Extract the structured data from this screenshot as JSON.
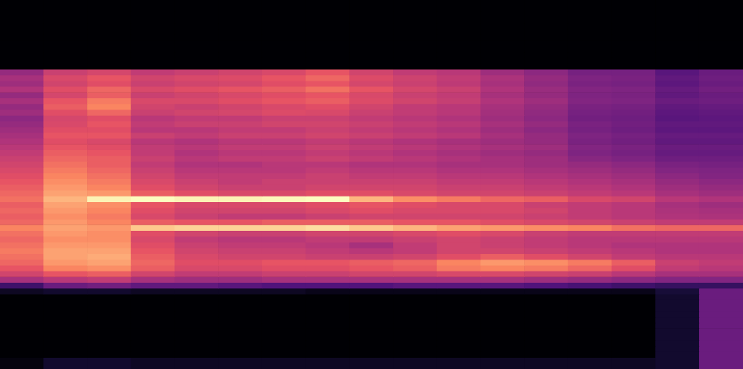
{
  "chart_data": {
    "type": "heatmap",
    "tick_labels": false,
    "ylim": [
      0,
      64
    ],
    "cells": [
      [
        0,
        0,
        0,
        0,
        0,
        0,
        0,
        0,
        0,
        0,
        0,
        0,
        0,
        0,
        0,
        0,
        0
      ],
      [
        0,
        0,
        0,
        0,
        0,
        0,
        0,
        0,
        0,
        0,
        0,
        0,
        0,
        0,
        0,
        0,
        0
      ],
      [
        0,
        0,
        0,
        0,
        0,
        0,
        0,
        0,
        0,
        0,
        0,
        0,
        0,
        0,
        0,
        0,
        0
      ],
      [
        0,
        0,
        0,
        0,
        0,
        0,
        0,
        0,
        0,
        0,
        0,
        0,
        0,
        0,
        0,
        0,
        0
      ],
      [
        0,
        0,
        0,
        0,
        0,
        0,
        0,
        0,
        0,
        0,
        0,
        0,
        0,
        0,
        0,
        0,
        0
      ],
      [
        0,
        0,
        0,
        0,
        0,
        0,
        0,
        0,
        0,
        0,
        0,
        0,
        0,
        0,
        0,
        0,
        0
      ],
      [
        0,
        0,
        0,
        0,
        0,
        0,
        0,
        0,
        0,
        0,
        0,
        0,
        0,
        0,
        0,
        0,
        0
      ],
      [
        0,
        0,
        0,
        0,
        0,
        0,
        0,
        0,
        0,
        0,
        0,
        0,
        0,
        0,
        0,
        0,
        0
      ],
      [
        0,
        0,
        0,
        0,
        0,
        0,
        0,
        0,
        0,
        0,
        0,
        0,
        0,
        0,
        0,
        0,
        0
      ],
      [
        0,
        0,
        0,
        0,
        0,
        0,
        0,
        0,
        0,
        0,
        0,
        0,
        0,
        0,
        0,
        0,
        0
      ],
      [
        0,
        0,
        0,
        0,
        0,
        0,
        0,
        0,
        0,
        0,
        0,
        0,
        0,
        0,
        0,
        0,
        0
      ],
      [
        0,
        0,
        0,
        0,
        0,
        0,
        0,
        0,
        0,
        0,
        0,
        0,
        0,
        0,
        0,
        0,
        0
      ],
      [
        40,
        52,
        55,
        50,
        52,
        54,
        56,
        60,
        54,
        50,
        48,
        42,
        38,
        33,
        33,
        26,
        30
      ],
      [
        44,
        56,
        60,
        54,
        56,
        57,
        60,
        64,
        57,
        53,
        50,
        45,
        40,
        35,
        34,
        28,
        31
      ],
      [
        42,
        54,
        58,
        52,
        54,
        55,
        58,
        60,
        55,
        52,
        49,
        44,
        39,
        34,
        33,
        27,
        30
      ],
      [
        46,
        58,
        64,
        56,
        58,
        60,
        62,
        66,
        60,
        55,
        52,
        46,
        41,
        36,
        35,
        29,
        32
      ],
      [
        40,
        55,
        62,
        52,
        54,
        56,
        58,
        60,
        56,
        52,
        50,
        44,
        40,
        35,
        34,
        28,
        30
      ],
      [
        44,
        60,
        68,
        56,
        56,
        58,
        60,
        62,
        57,
        54,
        51,
        46,
        42,
        36,
        35,
        30,
        31
      ],
      [
        40,
        62,
        70,
        54,
        52,
        54,
        56,
        58,
        54,
        50,
        48,
        44,
        40,
        34,
        33,
        28,
        29
      ],
      [
        42,
        58,
        64,
        52,
        54,
        55,
        57,
        56,
        52,
        50,
        48,
        43,
        39,
        33,
        32,
        27,
        28
      ],
      [
        38,
        55,
        58,
        48,
        50,
        50,
        52,
        52,
        50,
        48,
        46,
        42,
        38,
        32,
        31,
        26,
        27
      ],
      [
        40,
        56,
        60,
        50,
        52,
        52,
        54,
        54,
        52,
        50,
        48,
        44,
        40,
        34,
        32,
        28,
        28
      ],
      [
        42,
        58,
        58,
        48,
        48,
        50,
        50,
        52,
        50,
        48,
        46,
        42,
        38,
        33,
        31,
        27,
        27
      ],
      [
        44,
        60,
        60,
        52,
        50,
        52,
        52,
        54,
        52,
        50,
        48,
        44,
        40,
        35,
        33,
        29,
        29
      ],
      [
        46,
        58,
        56,
        48,
        46,
        48,
        48,
        50,
        48,
        46,
        44,
        42,
        40,
        34,
        32,
        28,
        28
      ],
      [
        48,
        60,
        58,
        50,
        48,
        50,
        50,
        52,
        50,
        48,
        46,
        44,
        42,
        36,
        34,
        30,
        30
      ],
      [
        50,
        62,
        60,
        50,
        46,
        48,
        48,
        50,
        48,
        46,
        44,
        42,
        40,
        35,
        33,
        29,
        29
      ],
      [
        52,
        64,
        62,
        52,
        48,
        50,
        50,
        52,
        50,
        48,
        46,
        44,
        42,
        37,
        35,
        31,
        31
      ],
      [
        54,
        66,
        62,
        50,
        46,
        46,
        48,
        48,
        46,
        46,
        44,
        44,
        42,
        40,
        38,
        34,
        33
      ],
      [
        56,
        68,
        64,
        52,
        48,
        48,
        48,
        50,
        48,
        48,
        46,
        46,
        44,
        42,
        40,
        36,
        35
      ],
      [
        58,
        70,
        66,
        54,
        50,
        50,
        50,
        52,
        50,
        50,
        48,
        48,
        46,
        44,
        42,
        38,
        36
      ],
      [
        60,
        72,
        68,
        56,
        52,
        50,
        52,
        52,
        52,
        52,
        50,
        50,
        48,
        46,
        44,
        40,
        38
      ],
      [
        62,
        74,
        70,
        58,
        54,
        52,
        52,
        54,
        54,
        54,
        52,
        52,
        50,
        48,
        46,
        42,
        40
      ],
      [
        64,
        76,
        74,
        62,
        58,
        56,
        56,
        58,
        58,
        56,
        54,
        54,
        52,
        50,
        48,
        44,
        42
      ],
      [
        66,
        80,
        92,
        94,
        92,
        92,
        93,
        94,
        80,
        72,
        68,
        64,
        62,
        56,
        54,
        48,
        46
      ],
      [
        62,
        76,
        72,
        60,
        56,
        56,
        56,
        58,
        60,
        58,
        56,
        56,
        52,
        50,
        48,
        44,
        42
      ],
      [
        64,
        74,
        70,
        58,
        54,
        54,
        54,
        56,
        58,
        56,
        56,
        56,
        54,
        50,
        48,
        45,
        44
      ],
      [
        62,
        72,
        68,
        56,
        52,
        50,
        50,
        52,
        54,
        54,
        54,
        54,
        52,
        50,
        48,
        46,
        45
      ],
      [
        64,
        74,
        70,
        62,
        60,
        60,
        62,
        62,
        62,
        60,
        60,
        58,
        56,
        54,
        52,
        50,
        50
      ],
      [
        70,
        76,
        74,
        84,
        86,
        86,
        86,
        88,
        84,
        80,
        76,
        74,
        72,
        70,
        66,
        64,
        64
      ],
      [
        66,
        74,
        72,
        58,
        54,
        52,
        52,
        54,
        54,
        56,
        58,
        56,
        52,
        50,
        50,
        50,
        50
      ],
      [
        64,
        72,
        72,
        56,
        50,
        48,
        48,
        50,
        50,
        52,
        54,
        52,
        50,
        48,
        48,
        48,
        48
      ],
      [
        66,
        74,
        74,
        58,
        52,
        50,
        50,
        48,
        44,
        50,
        54,
        52,
        50,
        48,
        46,
        46,
        46
      ],
      [
        68,
        76,
        76,
        60,
        54,
        52,
        52,
        50,
        48,
        50,
        54,
        54,
        52,
        50,
        48,
        46,
        46
      ],
      [
        66,
        76,
        78,
        62,
        56,
        54,
        54,
        52,
        52,
        54,
        58,
        62,
        58,
        54,
        50,
        48,
        48
      ],
      [
        64,
        74,
        76,
        64,
        58,
        58,
        60,
        60,
        62,
        64,
        70,
        74,
        72,
        68,
        62,
        52,
        50
      ],
      [
        60,
        70,
        72,
        62,
        56,
        56,
        58,
        58,
        60,
        62,
        68,
        70,
        68,
        64,
        58,
        50,
        48
      ],
      [
        54,
        60,
        62,
        54,
        50,
        50,
        52,
        52,
        54,
        54,
        56,
        56,
        54,
        52,
        48,
        44,
        44
      ],
      [
        44,
        48,
        50,
        44,
        42,
        42,
        44,
        44,
        44,
        44,
        44,
        44,
        42,
        40,
        38,
        36,
        36
      ],
      [
        20,
        30,
        32,
        28,
        28,
        26,
        24,
        24,
        24,
        26,
        26,
        26,
        24,
        22,
        20,
        18,
        18
      ],
      [
        6,
        8,
        8,
        6,
        6,
        6,
        6,
        4,
        4,
        4,
        4,
        4,
        4,
        4,
        4,
        10,
        30
      ],
      [
        0,
        0,
        0,
        0,
        0,
        0,
        0,
        0,
        0,
        0,
        0,
        0,
        0,
        0,
        0,
        8,
        30
      ],
      [
        0,
        0,
        0,
        0,
        0,
        0,
        0,
        0,
        0,
        0,
        0,
        0,
        0,
        0,
        0,
        8,
        30
      ],
      [
        0,
        0,
        0,
        0,
        0,
        0,
        0,
        0,
        0,
        0,
        0,
        0,
        0,
        0,
        0,
        8,
        30
      ],
      [
        0,
        0,
        0,
        0,
        0,
        0,
        0,
        0,
        0,
        0,
        0,
        0,
        0,
        0,
        0,
        8,
        30
      ],
      [
        0,
        0,
        0,
        0,
        0,
        0,
        0,
        0,
        0,
        0,
        0,
        0,
        0,
        0,
        0,
        8,
        30
      ],
      [
        0,
        0,
        0,
        0,
        0,
        0,
        0,
        0,
        0,
        0,
        0,
        0,
        0,
        0,
        0,
        8,
        30
      ],
      [
        0,
        0,
        0,
        0,
        0,
        0,
        0,
        0,
        0,
        0,
        0,
        0,
        0,
        0,
        0,
        8,
        30
      ],
      [
        0,
        0,
        0,
        0,
        0,
        0,
        0,
        0,
        0,
        0,
        0,
        0,
        0,
        0,
        0,
        8,
        30
      ],
      [
        0,
        0,
        0,
        0,
        0,
        0,
        0,
        0,
        0,
        0,
        0,
        0,
        0,
        0,
        0,
        8,
        30
      ],
      [
        0,
        0,
        0,
        0,
        0,
        0,
        0,
        0,
        0,
        0,
        0,
        0,
        0,
        0,
        0,
        8,
        30
      ],
      [
        0,
        0,
        0,
        0,
        0,
        0,
        0,
        0,
        0,
        0,
        0,
        0,
        0,
        0,
        0,
        8,
        30
      ],
      [
        2,
        8,
        8,
        6,
        6,
        6,
        6,
        6,
        6,
        6,
        6,
        6,
        6,
        6,
        6,
        8,
        30
      ],
      [
        2,
        8,
        8,
        6,
        6,
        6,
        6,
        6,
        6,
        6,
        6,
        6,
        6,
        6,
        6,
        8,
        30
      ]
    ]
  }
}
